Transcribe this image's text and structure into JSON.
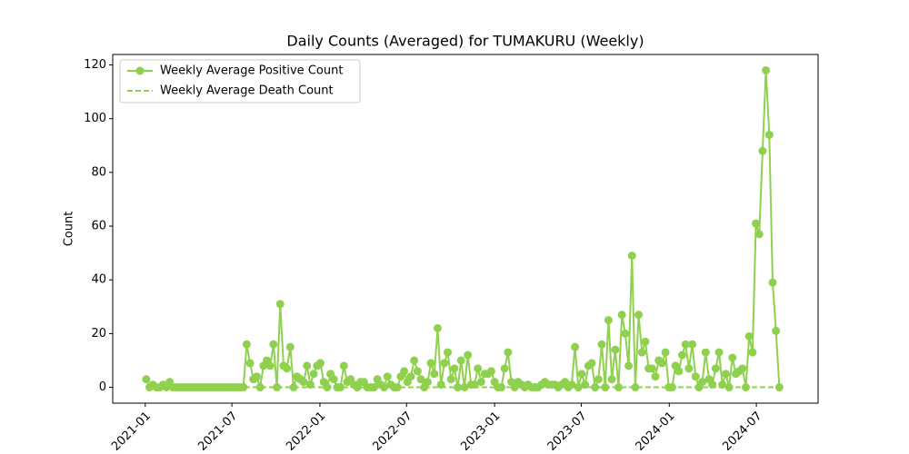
{
  "chart_data": {
    "type": "line",
    "title": "Daily Counts (Averaged) for TUMAKURU (Weekly)",
    "y_label": "Count",
    "legend": "upper left",
    "x": [
      "2021-01-03",
      "2021-01-10",
      "2021-01-17",
      "2021-01-24",
      "2021-01-31",
      "2021-02-07",
      "2021-02-14",
      "2021-02-21",
      "2021-02-28",
      "2021-03-07",
      "2021-03-14",
      "2021-03-21",
      "2021-03-28",
      "2021-04-04",
      "2021-04-11",
      "2021-04-18",
      "2021-04-25",
      "2021-05-02",
      "2021-05-09",
      "2021-05-16",
      "2021-05-23",
      "2021-05-30",
      "2021-06-06",
      "2021-06-13",
      "2021-06-20",
      "2021-06-27",
      "2021-07-04",
      "2021-07-11",
      "2021-07-18",
      "2021-07-25",
      "2021-08-01",
      "2021-08-08",
      "2021-08-15",
      "2021-08-22",
      "2021-08-29",
      "2021-09-05",
      "2021-09-12",
      "2021-09-19",
      "2021-09-26",
      "2021-10-03",
      "2021-10-10",
      "2021-10-17",
      "2021-10-24",
      "2021-10-31",
      "2021-11-07",
      "2021-11-14",
      "2021-11-21",
      "2021-11-28",
      "2021-12-05",
      "2021-12-12",
      "2021-12-19",
      "2021-12-26",
      "2022-01-02",
      "2022-01-09",
      "2022-01-16",
      "2022-01-23",
      "2022-01-30",
      "2022-02-06",
      "2022-02-13",
      "2022-02-20",
      "2022-02-27",
      "2022-03-06",
      "2022-03-13",
      "2022-03-20",
      "2022-03-27",
      "2022-04-03",
      "2022-04-10",
      "2022-04-17",
      "2022-04-24",
      "2022-05-01",
      "2022-05-08",
      "2022-05-15",
      "2022-05-22",
      "2022-05-29",
      "2022-06-05",
      "2022-06-12",
      "2022-06-19",
      "2022-06-26",
      "2022-07-03",
      "2022-07-10",
      "2022-07-17",
      "2022-07-24",
      "2022-07-31",
      "2022-08-07",
      "2022-08-14",
      "2022-08-21",
      "2022-08-28",
      "2022-09-04",
      "2022-09-11",
      "2022-09-18",
      "2022-09-25",
      "2022-10-02",
      "2022-10-09",
      "2022-10-16",
      "2022-10-23",
      "2022-10-30",
      "2022-11-06",
      "2022-11-13",
      "2022-11-20",
      "2022-11-27",
      "2022-12-04",
      "2022-12-11",
      "2022-12-18",
      "2022-12-25",
      "2023-01-01",
      "2023-01-08",
      "2023-01-15",
      "2023-01-22",
      "2023-01-29",
      "2023-02-05",
      "2023-02-12",
      "2023-02-19",
      "2023-02-26",
      "2023-03-05",
      "2023-03-12",
      "2023-03-19",
      "2023-03-26",
      "2023-04-02",
      "2023-04-09",
      "2023-04-16",
      "2023-04-23",
      "2023-04-30",
      "2023-05-07",
      "2023-05-14",
      "2023-05-21",
      "2023-05-28",
      "2023-06-04",
      "2023-06-11",
      "2023-06-18",
      "2023-06-25",
      "2023-07-02",
      "2023-07-09",
      "2023-07-16",
      "2023-07-23",
      "2023-07-30",
      "2023-08-06",
      "2023-08-13",
      "2023-08-20",
      "2023-08-27",
      "2023-09-03",
      "2023-09-10",
      "2023-09-17",
      "2023-09-24",
      "2023-10-01",
      "2023-10-08",
      "2023-10-15",
      "2023-10-22",
      "2023-10-29",
      "2023-11-05",
      "2023-11-12",
      "2023-11-19",
      "2023-11-26",
      "2023-12-03",
      "2023-12-10",
      "2023-12-17",
      "2023-12-24",
      "2023-12-31",
      "2024-01-07",
      "2024-01-14",
      "2024-01-21",
      "2024-01-28",
      "2024-02-04",
      "2024-02-11",
      "2024-02-18",
      "2024-02-25",
      "2024-03-03",
      "2024-03-10",
      "2024-03-17",
      "2024-03-24",
      "2024-03-31",
      "2024-04-07",
      "2024-04-14",
      "2024-04-21",
      "2024-04-28",
      "2024-05-05",
      "2024-05-12",
      "2024-05-19",
      "2024-05-26",
      "2024-06-02",
      "2024-06-09",
      "2024-06-16",
      "2024-06-23",
      "2024-06-30",
      "2024-07-07",
      "2024-07-14",
      "2024-07-21",
      "2024-07-28",
      "2024-08-04",
      "2024-08-11",
      "2024-08-18"
    ],
    "series": [
      {
        "name": "Weekly Average Positive Count",
        "color": "#8fd14f",
        "style": "solid",
        "marker": true,
        "values": [
          3,
          0,
          1,
          0,
          0,
          1,
          0,
          2,
          0,
          0,
          0,
          0,
          0,
          0,
          0,
          0,
          0,
          0,
          0,
          0,
          0,
          0,
          0,
          0,
          0,
          0,
          0,
          0,
          0,
          0,
          16,
          9,
          3,
          4,
          0,
          8,
          10,
          8,
          16,
          0,
          31,
          8,
          7,
          15,
          0,
          4,
          3,
          2,
          8,
          1,
          5,
          8,
          9,
          2,
          0,
          5,
          3,
          0,
          0,
          8,
          2,
          3,
          1,
          0,
          2,
          2,
          0,
          0,
          0,
          3,
          1,
          0,
          4,
          1,
          0,
          0,
          4,
          6,
          2,
          4,
          10,
          6,
          3,
          0,
          2,
          9,
          5,
          22,
          1,
          9,
          13,
          3,
          7,
          0,
          10,
          0,
          12,
          1,
          1,
          7,
          2,
          5,
          5,
          6,
          2,
          0,
          0,
          7,
          13,
          2,
          0,
          2,
          1,
          0,
          1,
          0,
          0,
          0,
          1,
          2,
          1,
          1,
          1,
          0,
          1,
          2,
          0,
          1,
          15,
          0,
          5,
          1,
          8,
          9,
          0,
          3,
          16,
          0,
          25,
          3,
          14,
          0,
          27,
          20,
          8,
          49,
          0,
          27,
          13,
          17,
          7,
          7,
          4,
          10,
          9,
          13,
          0,
          0,
          8,
          6,
          12,
          16,
          7,
          16,
          4,
          0,
          2,
          13,
          3,
          1,
          7,
          13,
          1,
          5,
          0,
          11,
          5,
          6,
          7,
          0,
          19,
          13,
          61,
          57,
          88,
          118,
          94,
          39,
          21,
          0
        ]
      },
      {
        "name": "Weekly Average Death Count",
        "color": "#8fd14f",
        "style": "dashed",
        "marker": false,
        "values": [
          0,
          0,
          0,
          0,
          0,
          0,
          0,
          0,
          0,
          0,
          0,
          0,
          0,
          0,
          0,
          0,
          0,
          0,
          0,
          0,
          0,
          0,
          0,
          0,
          0,
          0,
          0,
          0,
          0,
          0,
          0,
          0,
          0,
          0,
          0,
          0,
          0,
          0,
          0,
          0,
          0,
          0,
          0,
          0,
          0,
          0,
          0,
          0,
          0,
          0,
          0,
          0,
          0,
          0,
          0,
          0,
          0,
          0,
          0,
          0,
          0,
          0,
          0,
          0,
          0,
          0,
          0,
          0,
          0,
          0,
          0,
          0,
          0,
          0,
          0,
          0,
          0,
          0,
          0,
          0,
          0,
          0,
          0,
          0,
          0,
          0,
          0,
          0,
          0,
          0,
          0,
          0,
          0,
          0,
          0,
          0,
          0,
          0,
          0,
          0,
          0,
          0,
          0,
          0,
          0,
          0,
          0,
          0,
          0,
          0,
          0,
          0,
          0,
          0,
          0,
          0,
          0,
          0,
          0,
          0,
          0,
          0,
          0,
          0,
          0,
          0,
          0,
          0,
          0,
          0,
          0,
          0,
          0,
          0,
          0,
          0,
          0,
          0,
          0,
          0,
          0,
          0,
          0,
          0,
          0,
          0,
          0,
          0,
          0,
          0,
          0,
          0,
          0,
          0,
          0,
          0,
          0,
          0,
          0,
          0,
          0,
          0,
          0,
          0,
          0,
          0,
          0,
          0,
          0,
          0,
          0,
          0,
          0,
          0,
          0,
          0,
          0,
          0,
          0,
          0,
          0,
          0,
          0,
          0,
          0,
          0,
          0,
          0,
          0,
          0
        ]
      }
    ],
    "xlim": [
      "2020-10-25",
      "2024-11-07"
    ],
    "xticks": [
      {
        "value": "2021-01-01",
        "label": "2021-01"
      },
      {
        "value": "2021-07-01",
        "label": "2021-07"
      },
      {
        "value": "2022-01-01",
        "label": "2022-01"
      },
      {
        "value": "2022-07-01",
        "label": "2022-07"
      },
      {
        "value": "2023-01-01",
        "label": "2023-01"
      },
      {
        "value": "2023-07-01",
        "label": "2023-07"
      },
      {
        "value": "2024-01-01",
        "label": "2024-01"
      },
      {
        "value": "2024-07-01",
        "label": "2024-07"
      }
    ],
    "ylim": [
      -5.9,
      123.9
    ],
    "yticks": [
      0,
      20,
      40,
      60,
      80,
      100,
      120
    ]
  }
}
